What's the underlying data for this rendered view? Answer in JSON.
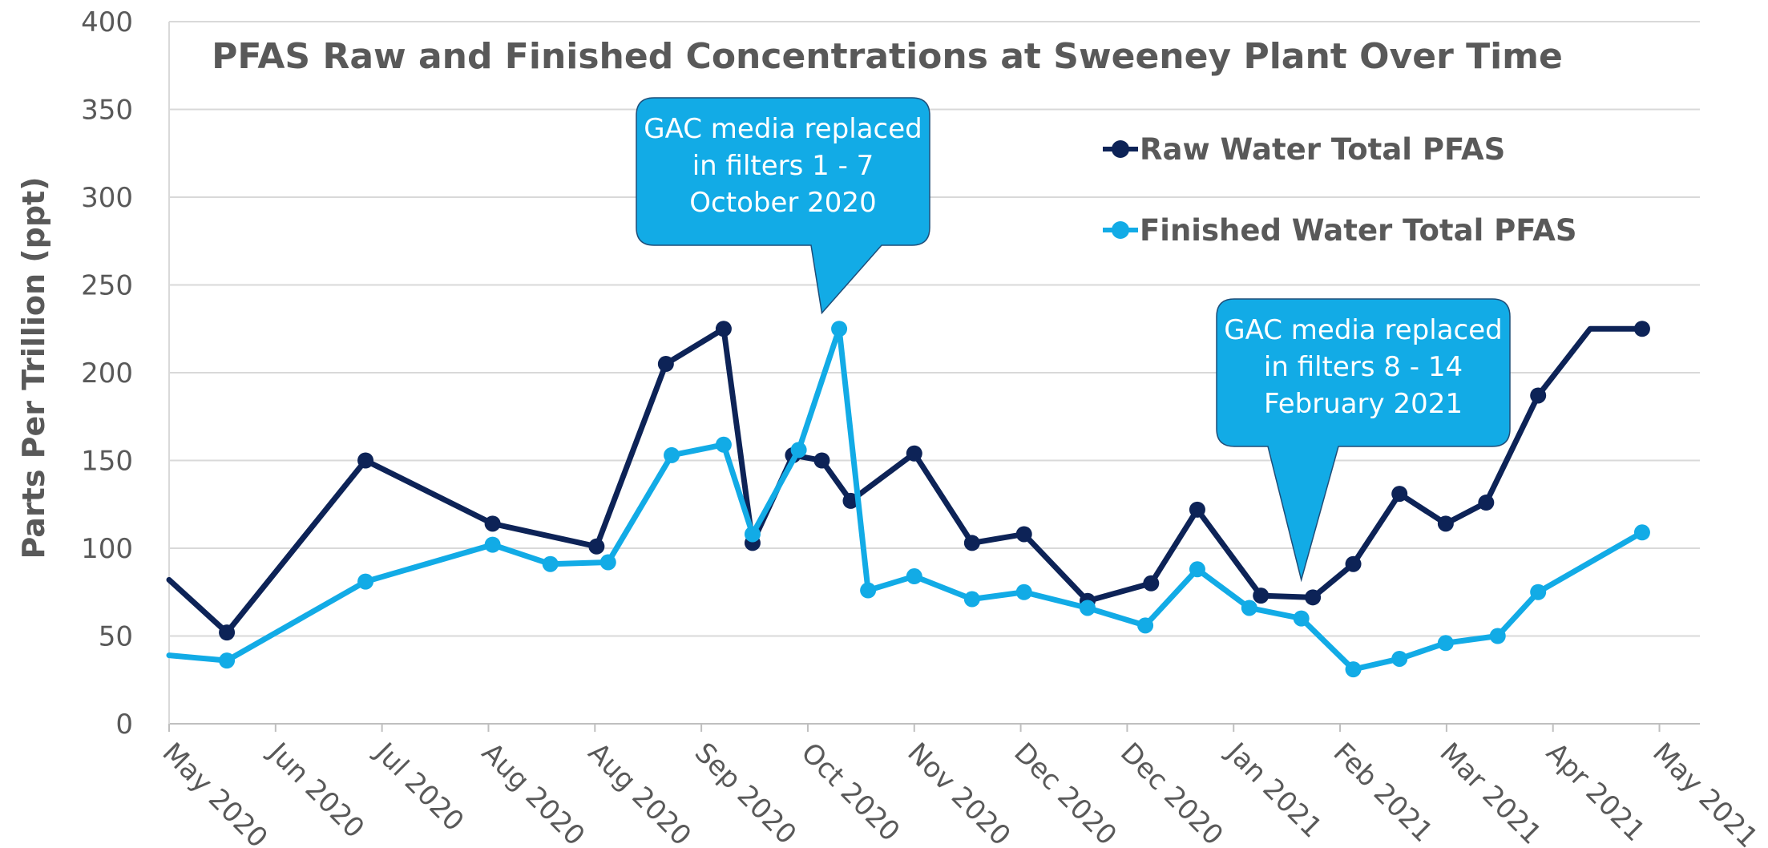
{
  "chart_data": {
    "type": "line",
    "title": "PFAS Raw and Finished Concentrations at Sweeney Plant Over Time",
    "ylabel": "Parts Per Trillion (ppt)",
    "xlabel": "",
    "ylim": [
      0,
      400
    ],
    "yticks": [
      0,
      50,
      100,
      150,
      200,
      250,
      300,
      350,
      400
    ],
    "xlim": [
      0,
      26.5
    ],
    "x_tick_labels": [
      "May 2020",
      "Jun 2020",
      "Jul 2020",
      "Aug 2020",
      "Aug 2020",
      "Sep 2020",
      "Oct 2020",
      "Nov 2020",
      "Dec 2020",
      "Dec 2020",
      "Jan 2021",
      "Feb 2021",
      "Mar 2021",
      "Apr 2021",
      "May 2021"
    ],
    "grid": true,
    "legend_position": "top-right",
    "series": [
      {
        "name": "Raw Water Total PFAS",
        "color": "#0D2357",
        "x": [
          0,
          1,
          3.4,
          5.6,
          7.4,
          8.6,
          9.6,
          10.1,
          10.8,
          11.3,
          11.8,
          12.9,
          13.9,
          14.8,
          15.9,
          17.0,
          17.8,
          18.9,
          19.8,
          20.5,
          21.3,
          22.1,
          22.8,
          23.7,
          24.6,
          25.5
        ],
        "y": [
          82,
          52,
          150,
          114,
          101,
          205,
          225,
          103,
          153,
          150,
          127,
          154,
          103,
          108,
          70,
          80,
          122,
          73,
          72,
          91,
          131,
          114,
          126,
          187,
          225,
          225
        ],
        "show_marker": [
          false,
          true,
          true,
          true,
          true,
          true,
          true,
          true,
          true,
          true,
          true,
          true,
          true,
          true,
          true,
          true,
          true,
          true,
          true,
          true,
          true,
          true,
          true,
          true,
          false,
          true
        ]
      },
      {
        "name": "Finished Water Total PFAS",
        "color": "#12ABE6",
        "x": [
          0,
          1,
          3.4,
          5.6,
          6.6,
          7.6,
          8.7,
          9.6,
          10.1,
          10.9,
          11.6,
          12.1,
          12.9,
          13.9,
          14.8,
          15.9,
          16.9,
          17.8,
          18.7,
          19.6,
          20.5,
          21.3,
          22.1,
          23.0,
          23.7,
          25.5
        ],
        "y": [
          39,
          36,
          81,
          102,
          91,
          92,
          153,
          159,
          108,
          156,
          225,
          76,
          84,
          71,
          75,
          66,
          56,
          88,
          66,
          60,
          31,
          37,
          46,
          50,
          75,
          109
        ],
        "show_marker": [
          false,
          true,
          true,
          true,
          true,
          true,
          true,
          true,
          true,
          true,
          true,
          true,
          true,
          true,
          true,
          true,
          true,
          true,
          true,
          true,
          true,
          true,
          true,
          true,
          true,
          true
        ]
      }
    ],
    "annotations": [
      {
        "lines": [
          "GAC media replaced",
          "in filters 1 - 7",
          "October 2020"
        ],
        "fill": "#12ABE6",
        "points_to": {
          "x": 11.3,
          "y": 234
        }
      },
      {
        "lines": [
          "GAC media replaced",
          "in filters 8 - 14",
          "February 2021"
        ],
        "fill": "#12ABE6",
        "points_to": {
          "x": 19.6,
          "y": 82
        }
      }
    ]
  }
}
